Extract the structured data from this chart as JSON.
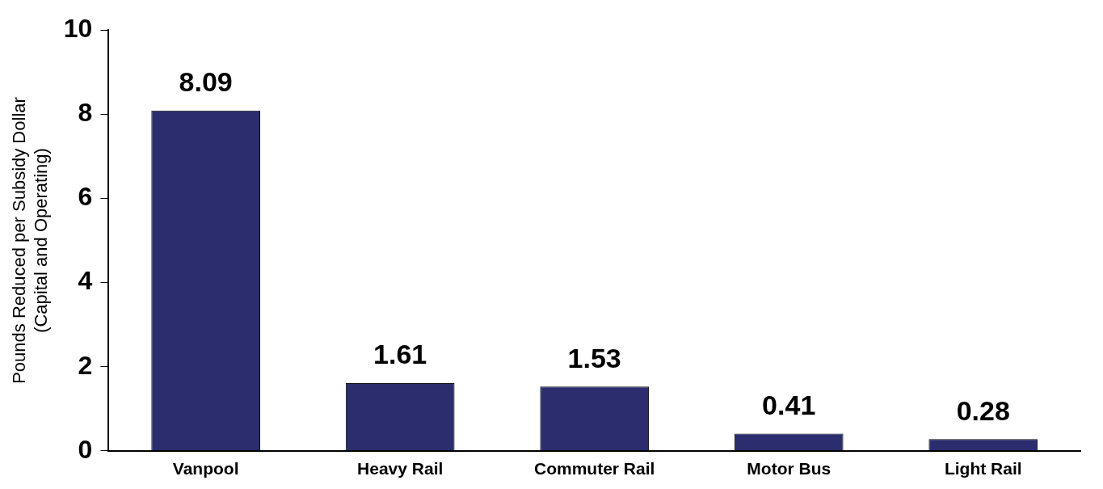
{
  "chart_data": {
    "type": "bar",
    "ylabel": "Pounds Reduced per Subsidy Dollar (Capital and Operating)",
    "categories": [
      "Vanpool",
      "Heavy Rail",
      "Commuter Rail",
      "Motor Bus",
      "Light Rail"
    ],
    "values": [
      8.09,
      1.61,
      1.53,
      0.41,
      0.28
    ],
    "color": "#2b2d6e",
    "ylim": [
      0,
      10
    ],
    "yticks": [
      0,
      2,
      4,
      6,
      8,
      10
    ],
    "grid": false,
    "legend": false,
    "data_labels": true
  }
}
